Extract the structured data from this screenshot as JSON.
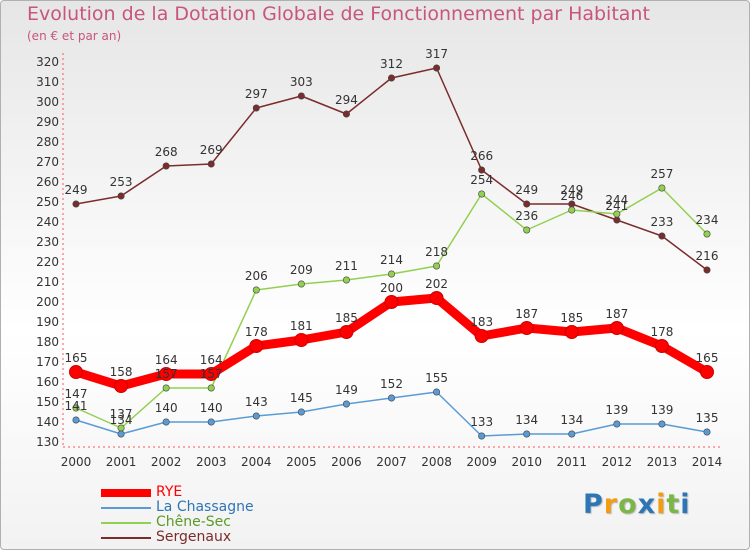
{
  "chart_data": {
    "type": "line",
    "title": "Evolution de la Dotation Globale de Fonctionnement par Habitant",
    "subtitle": "(en € et par an)",
    "xlabel": "",
    "ylabel": "",
    "ylim": [
      130,
      320
    ],
    "ytick_step": 10,
    "grid": false,
    "legend_position": "bottom-left",
    "categories": [
      "2000",
      "2001",
      "2002",
      "2003",
      "2004",
      "2005",
      "2006",
      "2007",
      "2008",
      "2009",
      "2010",
      "2011",
      "2012",
      "2013",
      "2014"
    ],
    "series": [
      {
        "name": "RYE",
        "color": "#ff0000",
        "values": [
          165,
          158,
          164,
          164,
          178,
          181,
          185,
          200,
          202,
          183,
          187,
          185,
          187,
          178,
          165
        ]
      },
      {
        "name": "La Chassagne",
        "color": "#5b9bd5",
        "values": [
          141,
          134,
          140,
          140,
          143,
          145,
          149,
          152,
          155,
          133,
          134,
          134,
          139,
          139,
          135
        ]
      },
      {
        "name": "Chêne-Sec",
        "color": "#92d050",
        "values": [
          147,
          137,
          157,
          157,
          206,
          209,
          211,
          214,
          218,
          254,
          236,
          246,
          244,
          257,
          234
        ]
      },
      {
        "name": "Sergenaux",
        "color": "#7b2c2c",
        "values": [
          249,
          253,
          268,
          269,
          297,
          303,
          294,
          312,
          317,
          266,
          249,
          249,
          241,
          233,
          216
        ]
      }
    ]
  },
  "logo": {
    "letters": [
      {
        "ch": "P",
        "color": "#2e75b6"
      },
      {
        "ch": "r",
        "color": "#f39c12"
      },
      {
        "ch": "o",
        "color": "#7ab648"
      },
      {
        "ch": "x",
        "color": "#2e75b6"
      },
      {
        "ch": "i",
        "color": "#f39c12"
      },
      {
        "ch": "t",
        "color": "#7ab648"
      },
      {
        "ch": "i",
        "color": "#2e75b6"
      }
    ]
  }
}
